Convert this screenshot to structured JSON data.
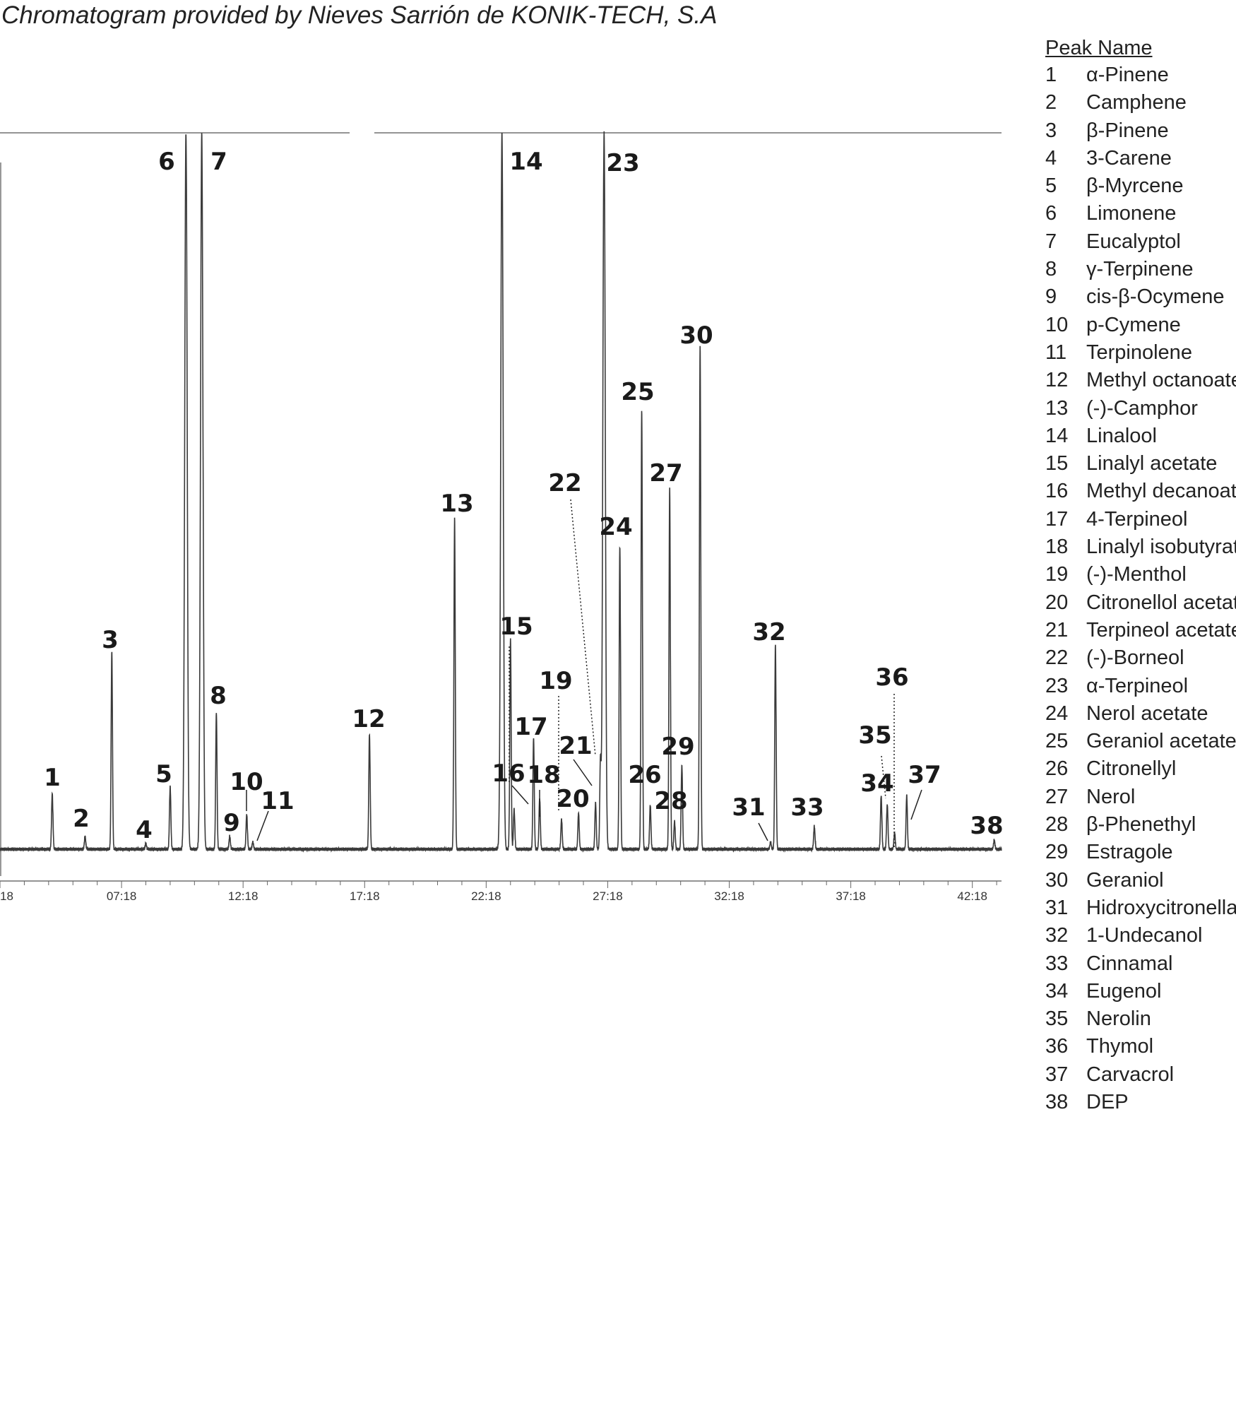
{
  "title": "Chromatogram provided by Nieves Sarrión de KONIK-TECH, S.A",
  "legend": {
    "header": "Peak Name",
    "items": [
      {
        "num": "1",
        "name": "α-Pinene"
      },
      {
        "num": "2",
        "name": "Camphene"
      },
      {
        "num": "3",
        "name": "β-Pinene"
      },
      {
        "num": "4",
        "name": "3-Carene"
      },
      {
        "num": "5",
        "name": "β-Myrcene"
      },
      {
        "num": "6",
        "name": "Limonene"
      },
      {
        "num": "7",
        "name": "Eucalyptol"
      },
      {
        "num": "8",
        "name": "γ-Terpinene"
      },
      {
        "num": "9",
        "name": "cis-β-Ocymene"
      },
      {
        "num": "10",
        "name": "p-Cymene"
      },
      {
        "num": "11",
        "name": "Terpinolene"
      },
      {
        "num": "12",
        "name": "Methyl octanoate"
      },
      {
        "num": "13",
        "name": "(-)-Camphor"
      },
      {
        "num": "14",
        "name": "Linalool"
      },
      {
        "num": "15",
        "name": "Linalyl acetate"
      },
      {
        "num": "16",
        "name": "Methyl decanoate"
      },
      {
        "num": "17",
        "name": "4-Terpineol"
      },
      {
        "num": "18",
        "name": "Linalyl isobutyrate"
      },
      {
        "num": "19",
        "name": "(-)-Menthol"
      },
      {
        "num": "20",
        "name": "Citronellol acetate"
      },
      {
        "num": "21",
        "name": "Terpineol acetate"
      },
      {
        "num": "22",
        "name": "(-)-Borneol"
      },
      {
        "num": "23",
        "name": "α-Terpineol"
      },
      {
        "num": "24",
        "name": "Nerol acetate"
      },
      {
        "num": "25",
        "name": "Geraniol acetate"
      },
      {
        "num": "26",
        "name": "Citronellyl"
      },
      {
        "num": "27",
        "name": "Nerol"
      },
      {
        "num": "28",
        "name": "β-Phenethyl"
      },
      {
        "num": "29",
        "name": "Estragole"
      },
      {
        "num": "30",
        "name": "Geraniol"
      },
      {
        "num": "31",
        "name": "Hidroxycitronellal"
      },
      {
        "num": "32",
        "name": "1-Undecanol"
      },
      {
        "num": "33",
        "name": "Cinnamal"
      },
      {
        "num": "34",
        "name": "Eugenol"
      },
      {
        "num": "35",
        "name": "Nerolin"
      },
      {
        "num": "36",
        "name": "Thymol"
      },
      {
        "num": "37",
        "name": "Carvacrol"
      },
      {
        "num": "38",
        "name": "DEP"
      }
    ]
  },
  "chart_data": {
    "type": "line",
    "title": "",
    "xlabel": "",
    "ylabel": "",
    "xlim": [
      2.3,
      43.5
    ],
    "ylim": [
      0,
      100
    ],
    "grid": false,
    "x_tick_labels": [
      "18",
      "07:18",
      "12:18",
      "17:18",
      "22:18",
      "27:18",
      "32:18",
      "37:18",
      "42:18"
    ],
    "x_tick_values": [
      2.3,
      7.3,
      12.3,
      17.3,
      22.3,
      27.3,
      32.3,
      37.3,
      42.3
    ],
    "peaks": [
      {
        "label": "1",
        "rt": 4.45,
        "height": 7.8
      },
      {
        "label": "2",
        "rt": 5.8,
        "height": 1.8
      },
      {
        "label": "3",
        "rt": 6.9,
        "height": 27.6
      },
      {
        "label": "4",
        "rt": 8.3,
        "height": 0.8
      },
      {
        "label": "5",
        "rt": 9.3,
        "height": 8.7
      },
      {
        "label": "6",
        "rt": 9.95,
        "height": 100,
        "clipped": true
      },
      {
        "label": "7",
        "rt": 10.6,
        "height": 100,
        "clipped": true
      },
      {
        "label": "8",
        "rt": 11.2,
        "height": 19.1
      },
      {
        "label": "9",
        "rt": 11.75,
        "height": 1.8
      },
      {
        "label": "10",
        "rt": 12.45,
        "height": 4.9
      },
      {
        "label": "11",
        "rt": 12.7,
        "height": 1.0
      },
      {
        "label": "12",
        "rt": 17.5,
        "height": 16.1
      },
      {
        "label": "13",
        "rt": 21.0,
        "height": 46.2
      },
      {
        "label": "14",
        "rt": 22.95,
        "height": 100,
        "clipped": true
      },
      {
        "label": "15",
        "rt": 23.3,
        "height": 29.4
      },
      {
        "label": "16",
        "rt": 23.45,
        "height": 5.6
      },
      {
        "label": "17",
        "rt": 24.25,
        "height": 15.5
      },
      {
        "label": "18",
        "rt": 24.5,
        "height": 7.1
      },
      {
        "label": "19",
        "rt": 25.4,
        "height": 4.2
      },
      {
        "label": "20",
        "rt": 26.1,
        "height": 5.1
      },
      {
        "label": "21",
        "rt": 26.8,
        "height": 6.5
      },
      {
        "label": "22",
        "rt": 27.0,
        "height": 12.1
      },
      {
        "label": "23",
        "rt": 27.15,
        "height": 100,
        "clipped": true
      },
      {
        "label": "24",
        "rt": 27.8,
        "height": 42.4
      },
      {
        "label": "25",
        "rt": 28.7,
        "height": 61.4
      },
      {
        "label": "26",
        "rt": 29.05,
        "height": 6.2
      },
      {
        "label": "27",
        "rt": 29.85,
        "height": 50.5
      },
      {
        "label": "28",
        "rt": 30.05,
        "height": 3.9
      },
      {
        "label": "29",
        "rt": 30.35,
        "height": 11.7
      },
      {
        "label": "30",
        "rt": 31.1,
        "height": 70.4
      },
      {
        "label": "31",
        "rt": 34.0,
        "height": 1.0
      },
      {
        "label": "32",
        "rt": 34.2,
        "height": 28.5
      },
      {
        "label": "33",
        "rt": 35.8,
        "height": 3.2
      },
      {
        "label": "34",
        "rt": 38.55,
        "height": 7.5
      },
      {
        "label": "35",
        "rt": 38.8,
        "height": 6.2
      },
      {
        "label": "36",
        "rt": 39.1,
        "height": 2.3
      },
      {
        "label": "37",
        "rt": 39.6,
        "height": 7.5
      },
      {
        "label": "38",
        "rt": 43.2,
        "height": 1.3
      }
    ]
  },
  "colors": {
    "trace": "#3a3a3a",
    "text": "#1a1a1a",
    "background": "#ffffff"
  }
}
